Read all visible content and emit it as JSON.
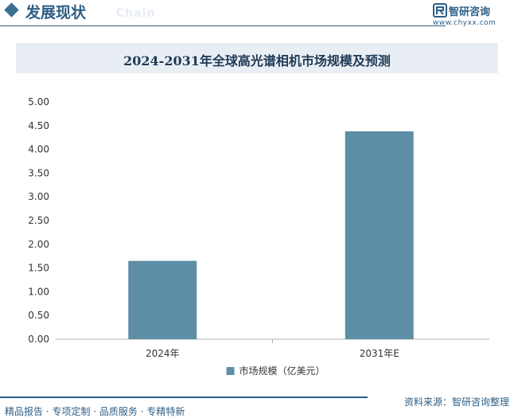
{
  "header": {
    "section_title": "发展现状",
    "section_watermark": "Chain",
    "logo_name": "智研咨询",
    "logo_url": "www.chyxx.com"
  },
  "footer": {
    "slogan": "精品报告 · 专项定制 · 品质服务 · 专精特新",
    "source": "资料来源：智研咨询整理"
  },
  "colors": {
    "brand": "#2e5f86",
    "bar": "#5e8ea6",
    "title_bg": "#e9eef5"
  },
  "chart_data": {
    "type": "bar",
    "title": "2024-2031年全球高光谱相机市场规模及预测",
    "categories": [
      "2024年",
      "2031年E"
    ],
    "series": [
      {
        "name": "市场规模（亿美元）",
        "values": [
          1.65,
          4.38
        ]
      }
    ],
    "ylim": [
      0,
      5
    ],
    "yticks": [
      "0.00",
      "0.50",
      "1.00",
      "1.50",
      "2.00",
      "2.50",
      "3.00",
      "3.50",
      "4.00",
      "4.50",
      "5.00"
    ],
    "legend_position": "bottom",
    "grid": false
  }
}
